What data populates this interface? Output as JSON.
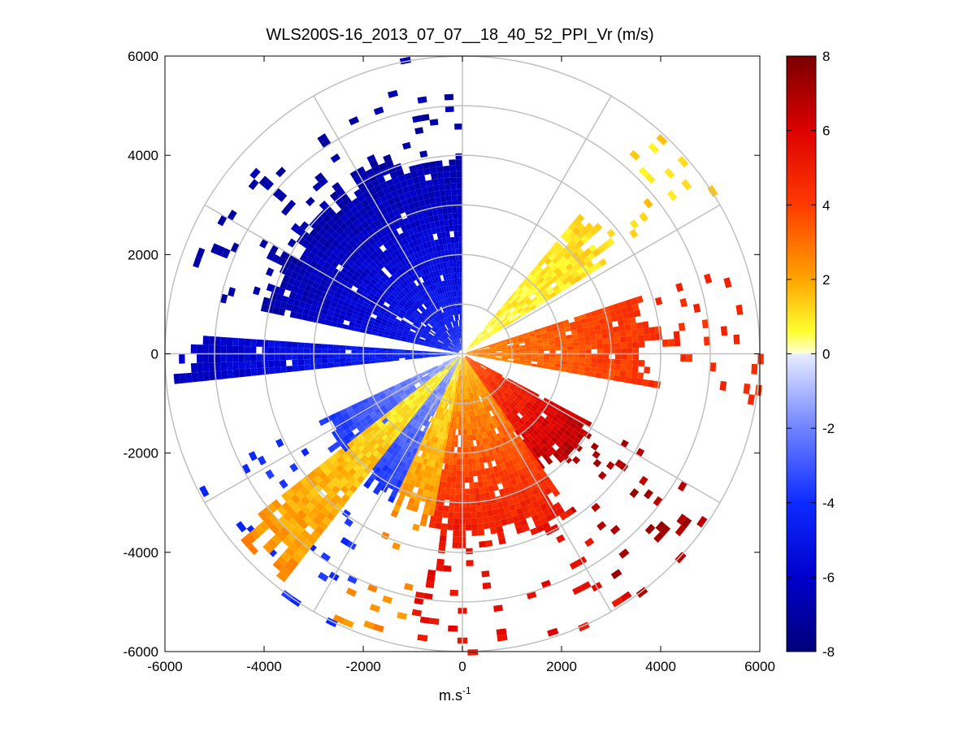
{
  "chart_data": {
    "type": "heatmap",
    "subtype": "polar PPI radial-velocity scan",
    "title": "WLS200S-16_2013_07_07__18_40_52_PPI_Vr (m/s)",
    "xlabel": "m.s",
    "xlabel_superscript": "-1",
    "ylabel": "",
    "xlim": [
      -6000,
      6000
    ],
    "ylim": [
      -6000,
      6000
    ],
    "x_ticks": [
      "-6000",
      "-4000",
      "-2000",
      "0",
      "2000",
      "4000",
      "6000"
    ],
    "y_ticks": [
      "6000",
      "4000",
      "2000",
      "0",
      "-2000",
      "-4000",
      "-6000"
    ],
    "polar_grid": {
      "ring_radii_m": [
        1000,
        2000,
        3000,
        4000,
        5000,
        6000
      ],
      "spoke_angles_deg": [
        0,
        30,
        60,
        90,
        120,
        150,
        180,
        210,
        240,
        270,
        300,
        330
      ]
    },
    "colorbar": {
      "range": [
        -8,
        8
      ],
      "ticks": [
        "8",
        "6",
        "4",
        "2",
        "0",
        "-2",
        "-4",
        "-6",
        "-8"
      ],
      "colormap": "blue-white-yellow-red",
      "stops": [
        {
          "v": -8,
          "color": "#00007a"
        },
        {
          "v": -6,
          "color": "#0000cd"
        },
        {
          "v": -4,
          "color": "#0d2bff"
        },
        {
          "v": -2,
          "color": "#6f83ff"
        },
        {
          "v": -0.01,
          "color": "#e8ecff"
        },
        {
          "v": 0.01,
          "color": "#ffffd8"
        },
        {
          "v": 0.6,
          "color": "#ffff30"
        },
        {
          "v": 2,
          "color": "#ffa400"
        },
        {
          "v": 4,
          "color": "#ff3a00"
        },
        {
          "v": 6,
          "color": "#dd0000"
        },
        {
          "v": 8,
          "color": "#7a0000"
        }
      ]
    },
    "sectors": [
      {
        "name": "NW blue sector",
        "az_start_deg": -78,
        "az_end_deg": 0,
        "r_max_m": 4300,
        "v_near": -4.5,
        "v_far": -7
      },
      {
        "name": "W blue strip",
        "az_start_deg": -96,
        "az_end_deg": -86,
        "r_max_m": 5900,
        "v_near": -4,
        "v_far": -6.5
      },
      {
        "name": "NE yellow band",
        "az_start_deg": 40,
        "az_end_deg": 58,
        "r_max_m": 3700,
        "v_near": 0.5,
        "v_far": 1.2
      },
      {
        "name": "E red band",
        "az_start_deg": 72,
        "az_end_deg": 100,
        "r_max_m": 4000,
        "v_near": 2.5,
        "v_far": 4.5
      },
      {
        "name": "SE dark red sector",
        "az_start_deg": 118,
        "az_end_deg": 145,
        "r_max_m": 3000,
        "v_near": 3.5,
        "v_far": 7
      },
      {
        "name": "S red-orange sector",
        "az_start_deg": 145,
        "az_end_deg": 190,
        "r_max_m": 4000,
        "v_near": 1.5,
        "v_far": 5.5
      },
      {
        "name": "SSW yellow sector",
        "az_start_deg": 190,
        "az_end_deg": 205,
        "r_max_m": 3500,
        "v_near": 0.8,
        "v_far": 2.5
      },
      {
        "name": "SW blue sector",
        "az_start_deg": 205,
        "az_end_deg": 245,
        "r_max_m": 3300,
        "v_near": -1,
        "v_far": -4
      },
      {
        "name": "SW yellow-orange strip",
        "az_start_deg": 218,
        "az_end_deg": 232,
        "r_max_m": 6000,
        "v_near": 0.5,
        "v_far": 2.5
      }
    ]
  }
}
